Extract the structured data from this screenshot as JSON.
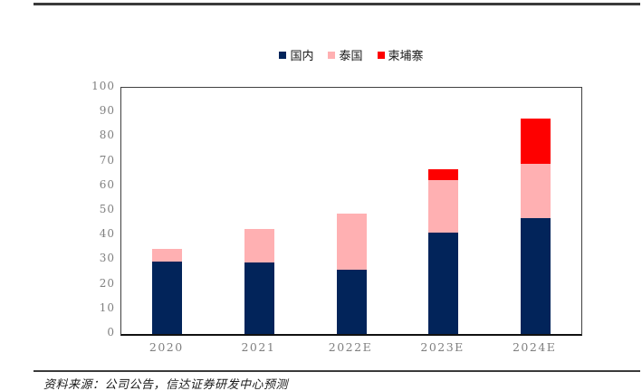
{
  "chart_data": {
    "type": "bar",
    "stacked": true,
    "title": "",
    "xlabel": "",
    "ylabel": "",
    "categories": [
      "2020",
      "2021",
      "2022E",
      "2023E",
      "2024E"
    ],
    "series": [
      {
        "name": "国内",
        "color": "#02245A",
        "values": [
          29.5,
          29,
          26,
          41,
          47
        ]
      },
      {
        "name": "泰国",
        "color": "#FFB0B2",
        "values": [
          5,
          13.5,
          23,
          21.5,
          22
        ]
      },
      {
        "name": "柬埔寨",
        "color": "#FE0000",
        "values": [
          0,
          0,
          0,
          4.5,
          18.5
        ]
      }
    ],
    "totals": [
      34.5,
      42.5,
      49,
      67,
      87.5
    ],
    "ylim": [
      0,
      100
    ],
    "ytick_step": 10,
    "grid": false,
    "legend_position": "top-center"
  },
  "footer": {
    "source_text": "资料来源：公司公告，信达证券研发中心预测"
  }
}
